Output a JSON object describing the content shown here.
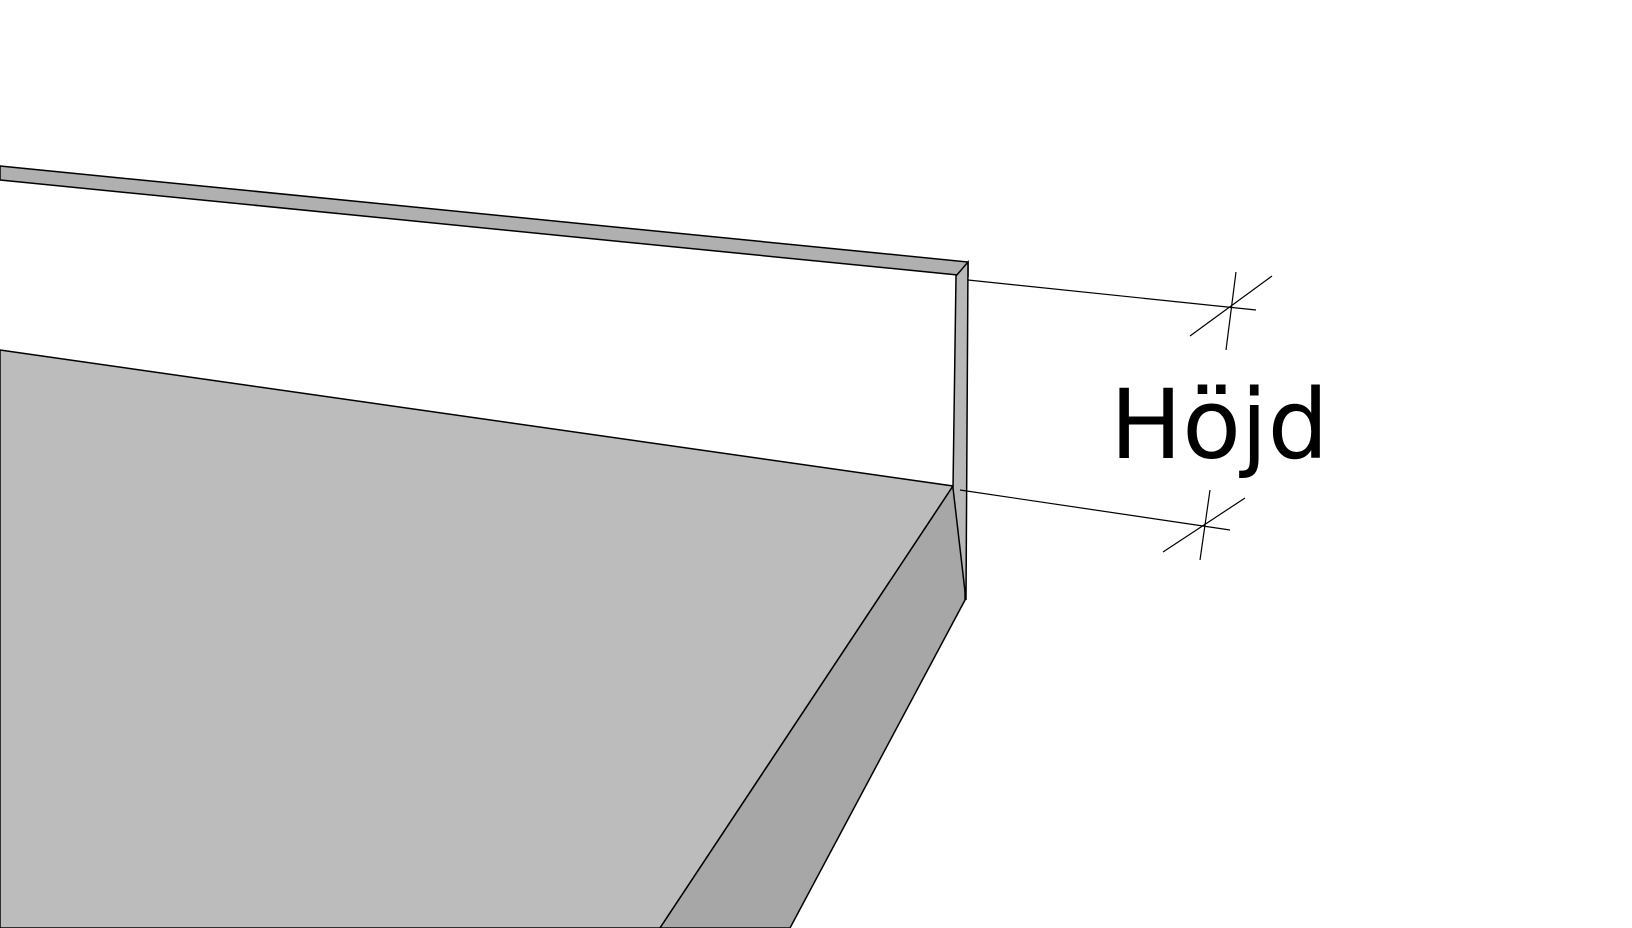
{
  "diagram": {
    "dimension_label": "Höjd"
  },
  "colors": {
    "background": "#ffffff",
    "top_surface": "#bcbcbc",
    "front_edge": "#a7a7a7",
    "upstand_face": "#b8b8b8",
    "upstand_top": "#a3a3a3",
    "outline": "#000000"
  }
}
